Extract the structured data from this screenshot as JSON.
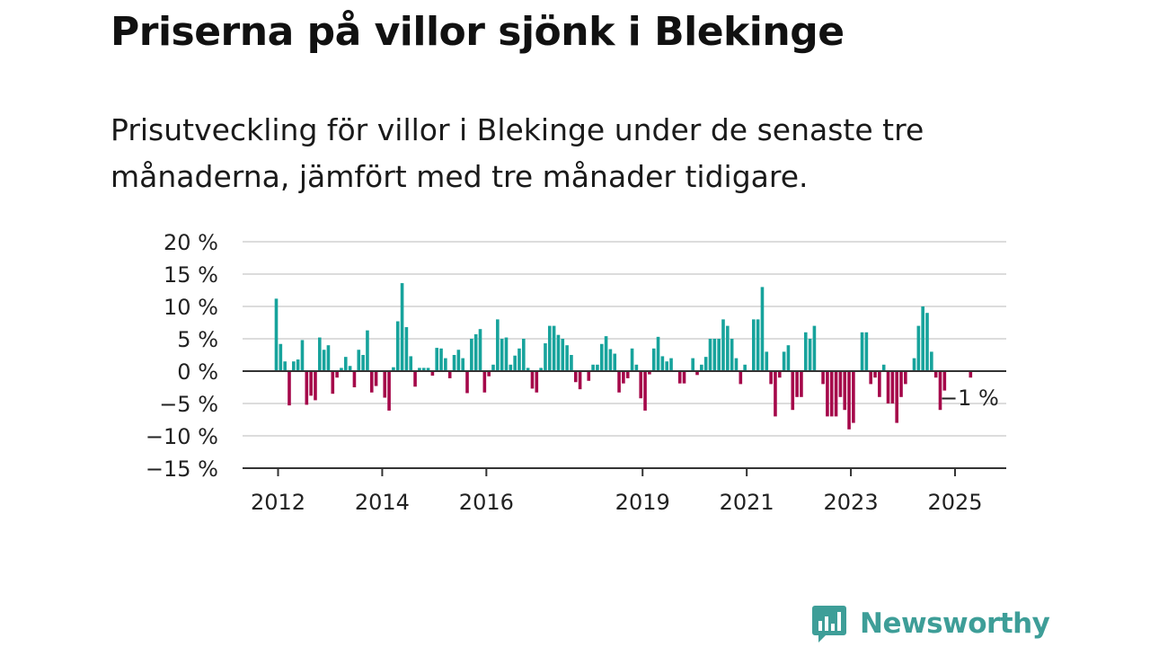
{
  "title": "Priserna på villor sjönk i Blekinge",
  "subtitle": "Prisutveckling för villor i Blekinge under de senaste tre månaderna, jämfört med tre månader tidigare.",
  "brand": {
    "name": "Newsworthy",
    "color": "#3e9e98"
  },
  "colors": {
    "positive": "#17a39c",
    "negative": "#a5084a",
    "grid": "#dcdcdc",
    "axis": "#333333"
  },
  "chart_data": {
    "type": "bar",
    "ylim": [
      -15,
      20
    ],
    "yticks": [
      20,
      15,
      10,
      5,
      0,
      -5,
      -10,
      -15
    ],
    "ytick_labels": [
      "20 %",
      "15 %",
      "10 %",
      "5 %",
      "0 %",
      "−5 %",
      "−10 %",
      "−15 %"
    ],
    "xtick_labels": [
      "2012",
      "2014",
      "2016",
      "2019",
      "2021",
      "2023",
      "2025"
    ],
    "x_start": "2012-01",
    "annotation": "−1 %",
    "grid": true,
    "legend": "none",
    "unit": "%",
    "values": [
      11.2,
      4.2,
      1.5,
      -5.3,
      1.5,
      1.8,
      4.8,
      -5.2,
      -3.8,
      -4.5,
      5.2,
      3.3,
      4.0,
      -3.5,
      -1.0,
      0.5,
      2.2,
      0.8,
      -2.5,
      3.3,
      2.5,
      6.3,
      -3.3,
      -2.3,
      0.0,
      -4.1,
      -6.1,
      0.6,
      7.7,
      13.6,
      6.8,
      2.3,
      -2.4,
      0.5,
      0.5,
      0.5,
      -0.7,
      3.6,
      3.5,
      2.0,
      -1.1,
      2.5,
      3.3,
      2.0,
      -3.4,
      5.0,
      5.7,
      6.5,
      -3.3,
      -0.8,
      1.0,
      8.0,
      5.0,
      5.2,
      1.0,
      2.4,
      3.5,
      5.0,
      0.5,
      -2.7,
      -3.3,
      0.5,
      4.3,
      7.0,
      7.0,
      5.6,
      5.0,
      4.0,
      2.5,
      -1.7,
      -2.8,
      0.0,
      -1.5,
      1.0,
      1.0,
      4.2,
      5.4,
      3.4,
      2.7,
      -3.3,
      -1.9,
      -1.1,
      3.5,
      1.0,
      -4.2,
      -6.1,
      -0.5,
      3.5,
      5.3,
      2.3,
      1.5,
      2.0,
      0.0,
      -1.9,
      -1.9,
      0.0,
      2.0,
      -0.6,
      1.0,
      2.2,
      5.0,
      5.0,
      5.0,
      8.0,
      7.0,
      5.0,
      2.0,
      -2.0,
      1.0,
      0.0,
      8.0,
      8.0,
      13.0,
      3.0,
      -2.0,
      -7.0,
      -1.0,
      3.0,
      4.0,
      -6.0,
      -4.0,
      -4.0,
      6.0,
      5.0,
      7.0,
      0.0,
      -2.0,
      -7.0,
      -7.0,
      -7.0,
      -4.0,
      -6.0,
      -9.0,
      -8.0,
      0.0,
      6.0,
      6.0,
      -2.0,
      -1.0,
      -4.0,
      1.0,
      -5.0,
      -5.0,
      -8.0,
      -4.0,
      -2.0,
      0.0,
      2.0,
      7.0,
      10.0,
      9.0,
      3.0,
      -1.0,
      -6.0,
      -3.0,
      0.0,
      0.0,
      0.0,
      0.0,
      0.0,
      -1.0
    ]
  }
}
